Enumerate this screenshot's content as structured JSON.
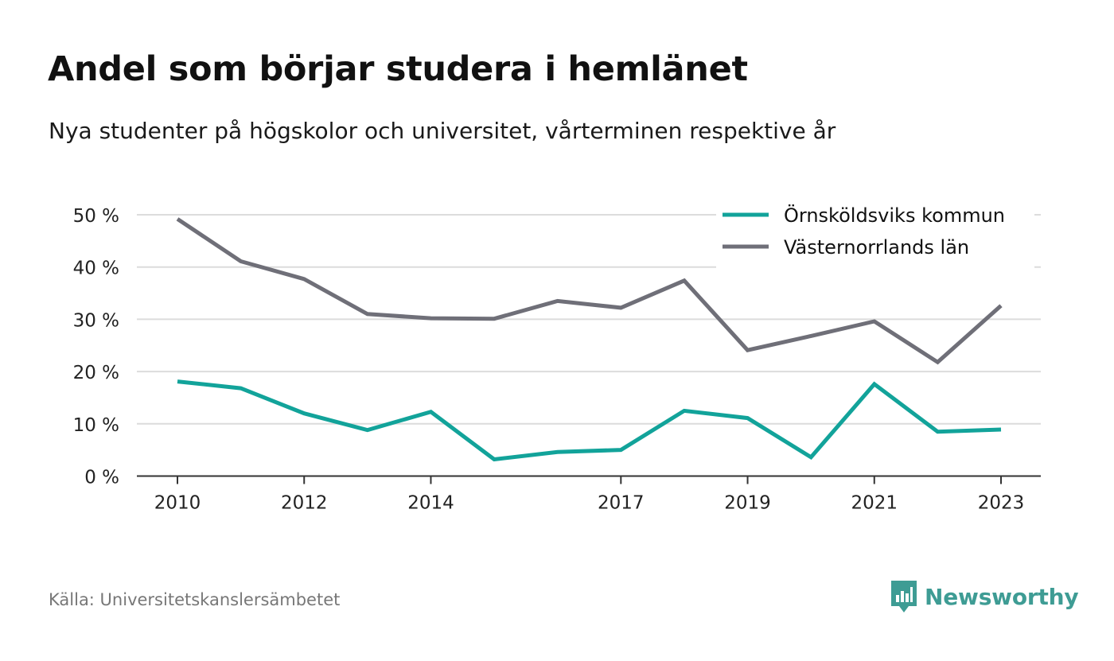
{
  "title": "Andel som börjar studera i hemlänet",
  "subtitle": "Nya studenter på högskolor och universitet, vårterminen respektive år",
  "source": "Källa: Universitetskanslersämbetet",
  "brand": {
    "name": "Newsworthy",
    "icon": "newsworthy-logo-icon",
    "color": "#3e9c94"
  },
  "chart_data": {
    "type": "line",
    "title": "Andel som börjar studera i hemlänet",
    "subtitle": "Nya studenter på högskolor och universitet, vårterminen respektive år",
    "x": [
      2010,
      2011,
      2012,
      2013,
      2014,
      2015,
      2016,
      2017,
      2018,
      2019,
      2020,
      2021,
      2022,
      2023
    ],
    "x_tick_labels": [
      "2010",
      "2012",
      "2014",
      "2017",
      "2019",
      "2021",
      "2023"
    ],
    "y_tick_labels": [
      "0 %",
      "10 %",
      "20 %",
      "30 %",
      "40 %",
      "50 %"
    ],
    "ylim": [
      0,
      50
    ],
    "y_unit": "%",
    "grid": true,
    "legend_position": "top-right",
    "series": [
      {
        "name": "Örnsköldsviks kommun",
        "color": "#12a39a",
        "values": [
          18.1,
          16.8,
          12.0,
          8.8,
          12.3,
          3.2,
          4.6,
          5.0,
          12.5,
          11.1,
          3.6,
          17.6,
          8.5,
          8.9
        ]
      },
      {
        "name": "Västernorrlands län",
        "color": "#6f6f78",
        "values": [
          49.2,
          41.1,
          37.7,
          31.0,
          30.2,
          30.1,
          33.5,
          32.2,
          37.4,
          24.1,
          26.8,
          29.6,
          21.8,
          32.6
        ]
      }
    ]
  }
}
